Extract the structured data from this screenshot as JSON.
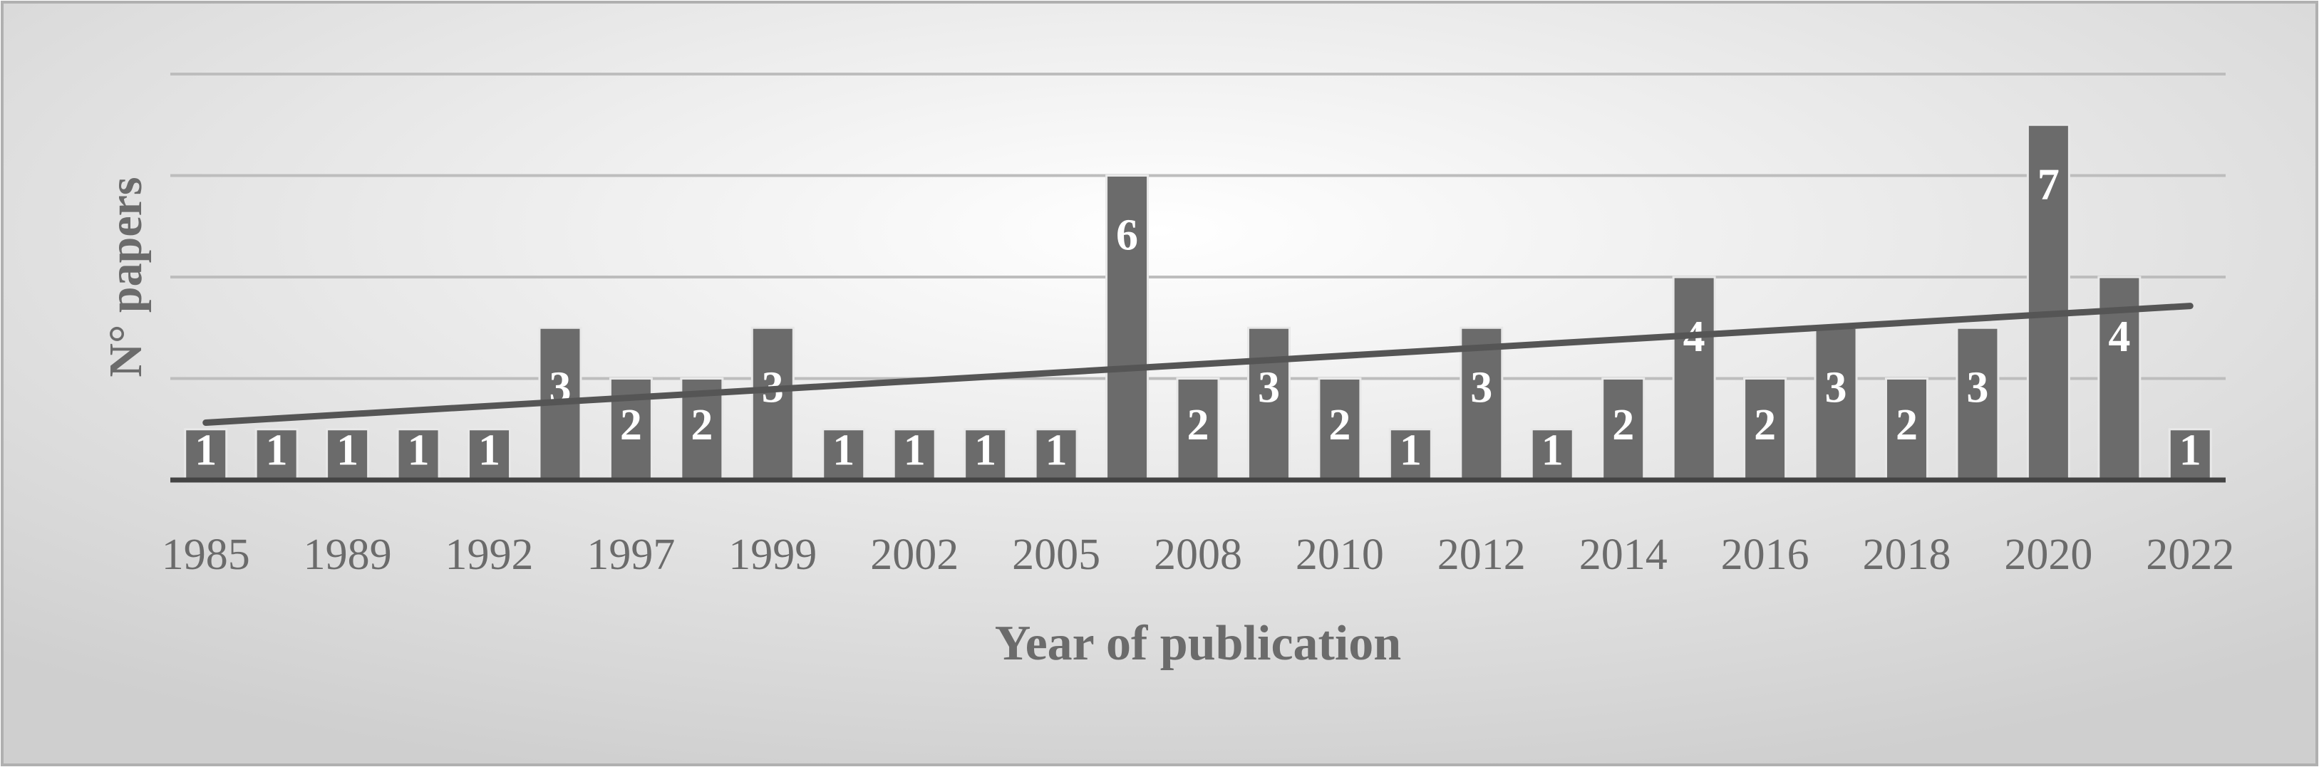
{
  "chart_data": {
    "type": "bar",
    "x_label": "Year of publication",
    "y_label": "N° papers",
    "categories": [
      "1985",
      null,
      "1989",
      null,
      "1992",
      null,
      "1997",
      null,
      "1999",
      null,
      "2002",
      null,
      "2005",
      null,
      "2008",
      null,
      "2010",
      null,
      "2012",
      null,
      "2014",
      null,
      "2016",
      null,
      "2018",
      null,
      "2020",
      null,
      "2022"
    ],
    "values": [
      1,
      1,
      1,
      1,
      1,
      3,
      2,
      2,
      3,
      1,
      1,
      1,
      1,
      6,
      2,
      3,
      2,
      1,
      3,
      1,
      2,
      4,
      2,
      3,
      2,
      3,
      7,
      4,
      1
    ],
    "color": "#6b6b6b",
    "ylim": [
      0,
      8
    ],
    "gridlines": [
      2,
      4,
      6,
      8
    ],
    "grid": true,
    "trendline": {
      "type": "linear",
      "start": 1.13,
      "end": 3.43,
      "color": "#555555"
    }
  }
}
